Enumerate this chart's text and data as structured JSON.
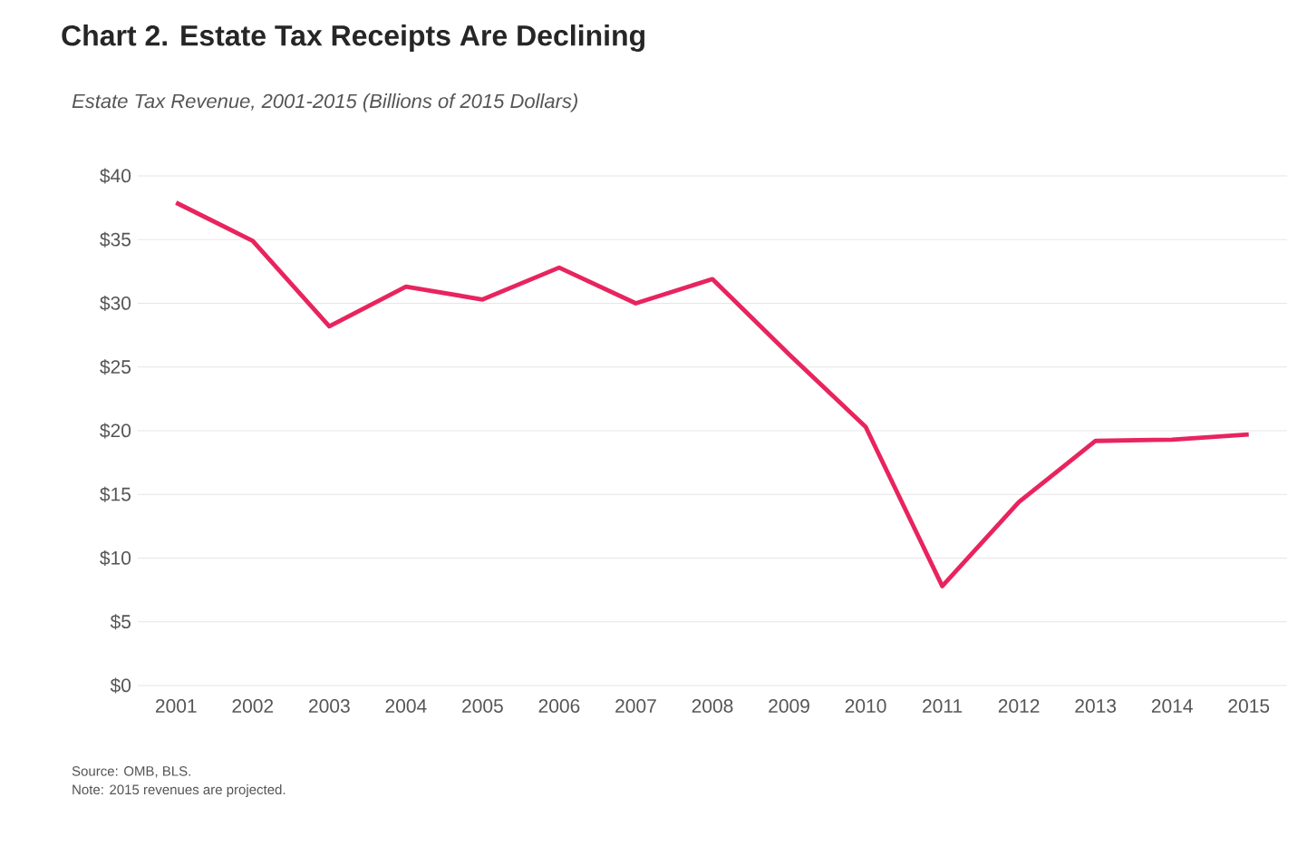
{
  "chart_data": {
    "type": "line",
    "title": "Chart 2. Estate Tax Receipts Are Declining",
    "subtitle": "Estate Tax Revenue, 2001-2015 (Billions of 2015 Dollars)",
    "categories": [
      "2001",
      "2002",
      "2003",
      "2004",
      "2005",
      "2006",
      "2007",
      "2008",
      "2009",
      "2010",
      "2011",
      "2012",
      "2013",
      "2014",
      "2015"
    ],
    "series": [
      {
        "color": "#e8245f",
        "values": [
          37.9,
          34.9,
          28.2,
          31.3,
          30.3,
          32.8,
          30.0,
          31.9,
          26.0,
          20.3,
          7.8,
          14.4,
          19.2,
          19.3,
          19.7
        ]
      }
    ],
    "ylim": [
      0,
      40
    ],
    "yticks": [
      {
        "value": 0,
        "label": "$0"
      },
      {
        "value": 5,
        "label": "$5"
      },
      {
        "value": 10,
        "label": "$10"
      },
      {
        "value": 15,
        "label": "$15"
      },
      {
        "value": 20,
        "label": "$20"
      },
      {
        "value": 25,
        "label": "$25"
      },
      {
        "value": 30,
        "label": "$30"
      },
      {
        "value": 35,
        "label": "$35"
      },
      {
        "value": 40,
        "label": "$40"
      }
    ],
    "grid": "y",
    "marker": "none",
    "line_style": "solid",
    "annotations": [
      "Source: OMB, BLS.",
      "Note: 2015 revenues are projected."
    ]
  }
}
